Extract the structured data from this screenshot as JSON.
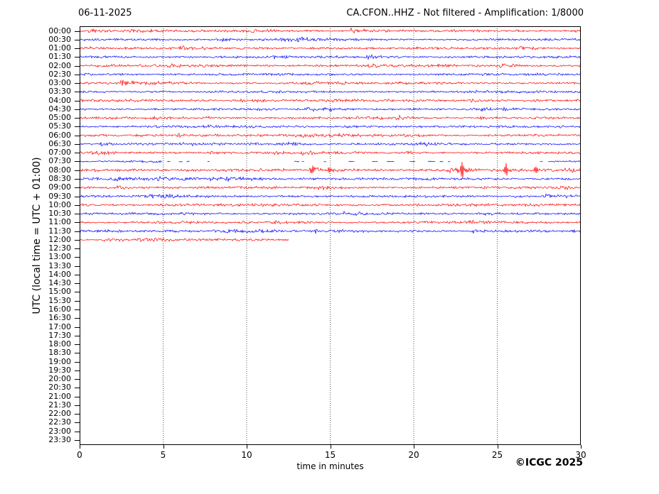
{
  "header": {
    "date": "06-11-2025",
    "station": "CA.CFON..HHZ - Not filtered - Amplification: 1/8000"
  },
  "chart_data": {
    "type": "line",
    "subtype": "helicorder-seismogram",
    "xlabel": "time in minutes",
    "ylabel": "UTC (local time = UTC + 01:00)",
    "copyright": "©ICGC 2025",
    "x_range": [
      0,
      30
    ],
    "x_ticks": [
      0,
      5,
      10,
      15,
      20,
      25,
      30
    ],
    "grid_minutes": [
      5,
      10,
      15,
      20,
      25
    ],
    "grid_style": "dotted",
    "trace_colors": {
      "hour": "#ff0000",
      "half_hour": "#0000ff"
    },
    "rows": [
      {
        "label": "00:00",
        "color": "#ff0000",
        "amp": 1.0,
        "segments": [
          [
            0,
            30
          ]
        ]
      },
      {
        "label": "00:30",
        "color": "#0000ff",
        "amp": 1.0,
        "segments": [
          [
            0,
            30
          ]
        ]
      },
      {
        "label": "01:00",
        "color": "#ff0000",
        "amp": 1.0,
        "segments": [
          [
            0,
            30
          ]
        ]
      },
      {
        "label": "01:30",
        "color": "#0000ff",
        "amp": 1.0,
        "segments": [
          [
            0,
            30
          ]
        ]
      },
      {
        "label": "02:00",
        "color": "#ff0000",
        "amp": 1.1,
        "segments": [
          [
            0,
            30
          ]
        ]
      },
      {
        "label": "02:30",
        "color": "#0000ff",
        "amp": 1.05,
        "segments": [
          [
            0,
            30
          ]
        ]
      },
      {
        "label": "03:00",
        "color": "#ff0000",
        "amp": 1.05,
        "segments": [
          [
            0,
            30
          ]
        ]
      },
      {
        "label": "03:30",
        "color": "#0000ff",
        "amp": 1.0,
        "segments": [
          [
            0,
            30
          ]
        ]
      },
      {
        "label": "04:00",
        "color": "#ff0000",
        "amp": 1.1,
        "segments": [
          [
            0,
            30
          ]
        ]
      },
      {
        "label": "04:30",
        "color": "#0000ff",
        "amp": 1.0,
        "segments": [
          [
            0,
            30
          ]
        ]
      },
      {
        "label": "05:00",
        "color": "#ff0000",
        "amp": 1.0,
        "segments": [
          [
            0,
            30
          ]
        ]
      },
      {
        "label": "05:30",
        "color": "#0000ff",
        "amp": 1.0,
        "segments": [
          [
            0,
            30
          ]
        ]
      },
      {
        "label": "06:00",
        "color": "#ff0000",
        "amp": 1.0,
        "segments": [
          [
            0,
            30
          ]
        ]
      },
      {
        "label": "06:30",
        "color": "#0000ff",
        "amp": 1.0,
        "segments": [
          [
            0,
            30
          ]
        ]
      },
      {
        "label": "07:00",
        "color": "#ff0000",
        "amp": 1.0,
        "segments": [
          [
            0,
            30
          ]
        ]
      },
      {
        "label": "07:30",
        "color": "#0000ff",
        "amp": 0.9,
        "segments": [
          [
            0,
            4.95
          ],
          [
            5.25,
            5.45
          ],
          [
            5.95,
            6.2
          ],
          [
            6.4,
            6.6
          ],
          [
            7.65,
            7.8
          ],
          [
            12.85,
            13.15
          ],
          [
            13.3,
            13.45
          ],
          [
            14.6,
            14.8
          ],
          [
            16.1,
            16.45
          ],
          [
            17.5,
            17.85
          ],
          [
            18.4,
            18.85
          ],
          [
            19.75,
            20.1
          ],
          [
            20.85,
            21.3
          ],
          [
            21.55,
            21.8
          ],
          [
            22.05,
            22.2
          ],
          [
            27.55,
            27.75
          ],
          [
            28.05,
            30
          ]
        ]
      },
      {
        "label": "08:00",
        "color": "#ff0000",
        "amp": 1.3,
        "segments": [
          [
            0,
            30
          ]
        ],
        "events": [
          {
            "t": 14.0,
            "a": 7
          },
          {
            "t": 14.9,
            "a": 4.5
          },
          {
            "t": 22.9,
            "a": 13
          },
          {
            "t": 25.5,
            "a": 11
          },
          {
            "t": 27.3,
            "a": 6.5
          }
        ]
      },
      {
        "label": "08:30",
        "color": "#0000ff",
        "amp": 1.1,
        "segments": [
          [
            0,
            30
          ]
        ]
      },
      {
        "label": "09:00",
        "color": "#ff0000",
        "amp": 1.05,
        "segments": [
          [
            0,
            30
          ]
        ]
      },
      {
        "label": "09:30",
        "color": "#0000ff",
        "amp": 1.05,
        "segments": [
          [
            0,
            30
          ]
        ]
      },
      {
        "label": "10:00",
        "color": "#ff0000",
        "amp": 1.15,
        "segments": [
          [
            0,
            30
          ]
        ]
      },
      {
        "label": "10:30",
        "color": "#0000ff",
        "amp": 1.0,
        "segments": [
          [
            0,
            30
          ]
        ]
      },
      {
        "label": "11:00",
        "color": "#ff0000",
        "amp": 1.0,
        "segments": [
          [
            0,
            30
          ]
        ]
      },
      {
        "label": "11:30",
        "color": "#0000ff",
        "amp": 1.1,
        "segments": [
          [
            0,
            30
          ]
        ]
      },
      {
        "label": "12:00",
        "color": "#ff0000",
        "amp": 1.0,
        "segments": [
          [
            0,
            12.55
          ]
        ]
      },
      {
        "label": "12:30",
        "color": "#0000ff",
        "amp": 0,
        "segments": []
      },
      {
        "label": "13:00",
        "color": "#ff0000",
        "amp": 0,
        "segments": []
      },
      {
        "label": "13:30",
        "color": "#0000ff",
        "amp": 0,
        "segments": []
      },
      {
        "label": "14:00",
        "color": "#ff0000",
        "amp": 0,
        "segments": []
      },
      {
        "label": "14:30",
        "color": "#0000ff",
        "amp": 0,
        "segments": []
      },
      {
        "label": "15:00",
        "color": "#ff0000",
        "amp": 0,
        "segments": []
      },
      {
        "label": "15:30",
        "color": "#0000ff",
        "amp": 0,
        "segments": []
      },
      {
        "label": "16:00",
        "color": "#ff0000",
        "amp": 0,
        "segments": []
      },
      {
        "label": "16:30",
        "color": "#0000ff",
        "amp": 0,
        "segments": []
      },
      {
        "label": "17:00",
        "color": "#ff0000",
        "amp": 0,
        "segments": []
      },
      {
        "label": "17:30",
        "color": "#0000ff",
        "amp": 0,
        "segments": []
      },
      {
        "label": "18:00",
        "color": "#ff0000",
        "amp": 0,
        "segments": []
      },
      {
        "label": "18:30",
        "color": "#0000ff",
        "amp": 0,
        "segments": []
      },
      {
        "label": "19:00",
        "color": "#ff0000",
        "amp": 0,
        "segments": []
      },
      {
        "label": "19:30",
        "color": "#0000ff",
        "amp": 0,
        "segments": []
      },
      {
        "label": "20:00",
        "color": "#ff0000",
        "amp": 0,
        "segments": []
      },
      {
        "label": "20:30",
        "color": "#0000ff",
        "amp": 0,
        "segments": []
      },
      {
        "label": "21:00",
        "color": "#ff0000",
        "amp": 0,
        "segments": []
      },
      {
        "label": "21:30",
        "color": "#0000ff",
        "amp": 0,
        "segments": []
      },
      {
        "label": "22:00",
        "color": "#ff0000",
        "amp": 0,
        "segments": []
      },
      {
        "label": "22:30",
        "color": "#0000ff",
        "amp": 0,
        "segments": []
      },
      {
        "label": "23:00",
        "color": "#ff0000",
        "amp": 0,
        "segments": []
      },
      {
        "label": "23:30",
        "color": "#0000ff",
        "amp": 0,
        "segments": []
      }
    ]
  }
}
